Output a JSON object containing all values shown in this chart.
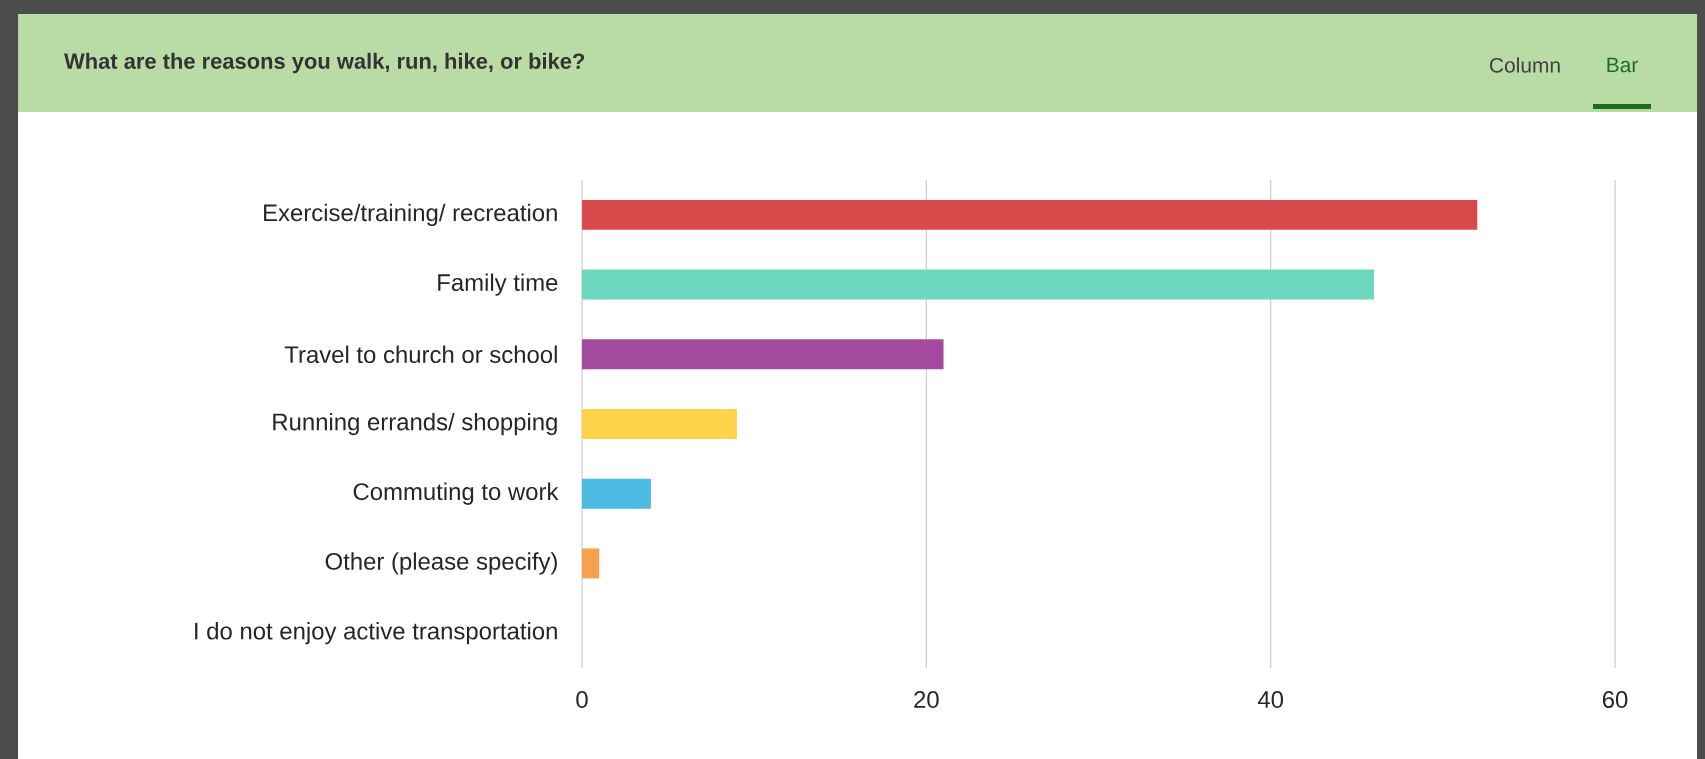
{
  "chart_data": {
    "type": "bar",
    "orientation": "horizontal",
    "title": "What are the reasons you walk, run, hike, or bike?",
    "annotations": [
      "Column",
      "Bar"
    ],
    "categories": [
      "Exercise/training/ recreation",
      "Family time",
      "Travel to church or school",
      "Running errands/ shopping",
      "Commuting to work",
      "Other (please specify)",
      "I do not enjoy active transportation"
    ],
    "values": [
      52,
      46,
      21,
      9,
      4,
      1,
      0
    ],
    "colors": [
      "#d9494b",
      "#6ad7be",
      "#a44ba0",
      "#fed54a",
      "#4cbae3",
      "#f7a04d",
      "#999999"
    ],
    "xlim": [
      0,
      60
    ],
    "xticks": [
      0,
      20,
      40,
      60
    ],
    "grid": "x"
  }
}
